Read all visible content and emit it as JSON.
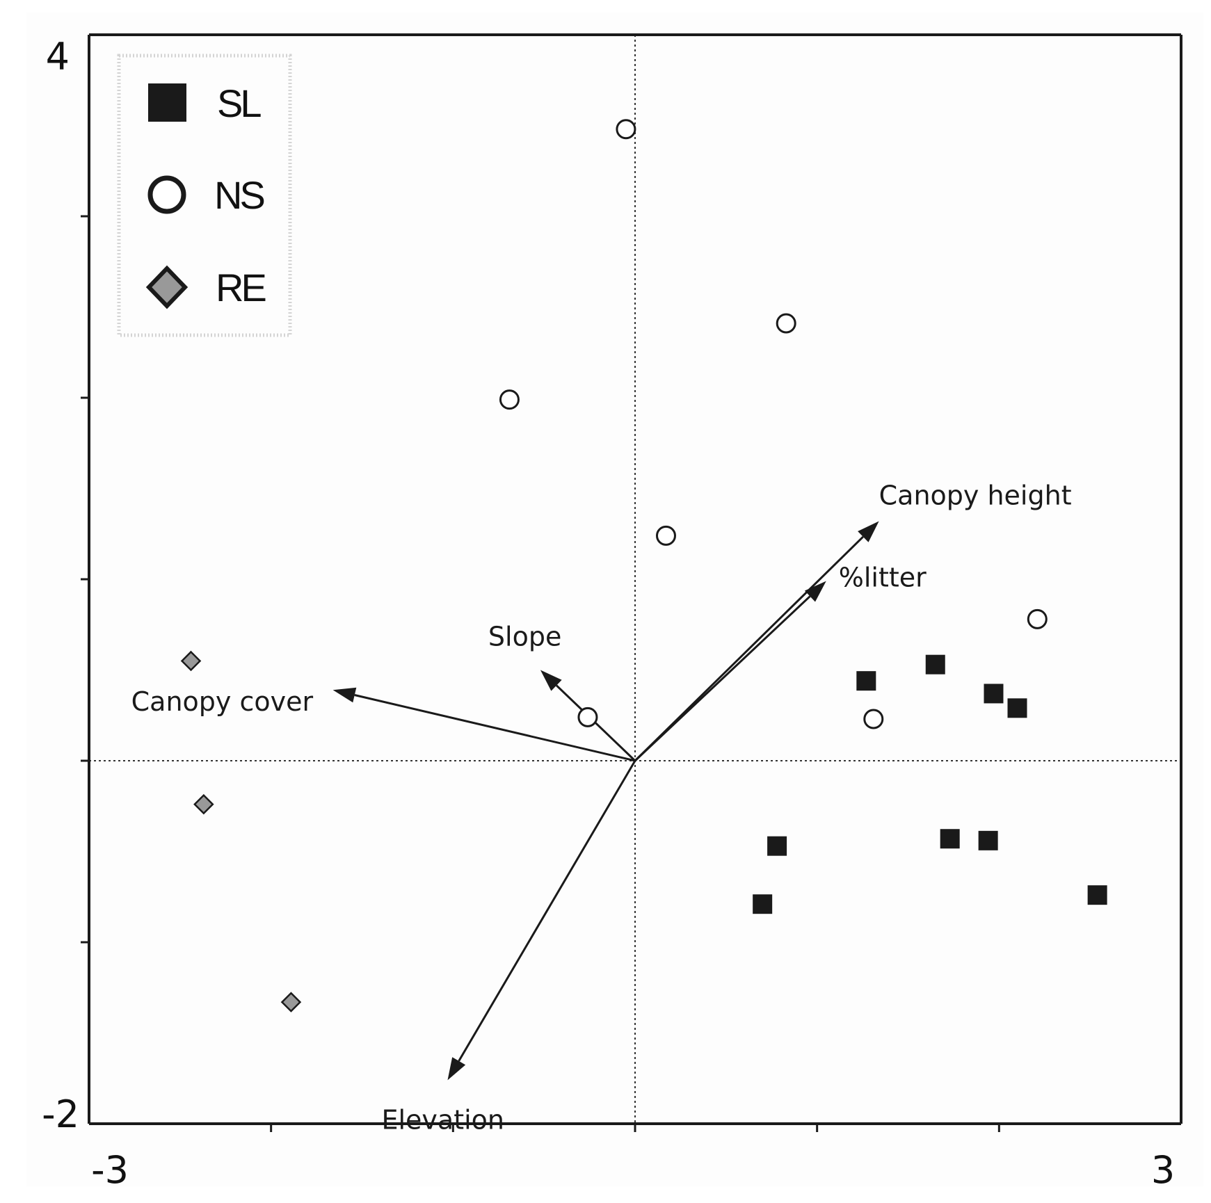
{
  "chart_data": {
    "type": "scatter",
    "title": "",
    "xlabel": "",
    "ylabel": "",
    "xlim": [
      -3,
      3
    ],
    "ylim": [
      -2,
      4
    ],
    "x_tick_labels": [
      "-3",
      "3"
    ],
    "y_tick_labels": [
      "4",
      "-2"
    ],
    "x_minor_ticks": [
      -2,
      -1,
      0,
      1,
      2
    ],
    "y_minor_ticks": [
      -1,
      0,
      1,
      2,
      3
    ],
    "reference_lines": {
      "x": 0,
      "y": 0,
      "style": "dotted"
    },
    "legend": {
      "placement": "top-left",
      "entries": [
        {
          "label": "SL",
          "marker": "square",
          "color": "#1a1a1a"
        },
        {
          "label": "NS",
          "marker": "circle-open",
          "color": "#1a1a1a"
        },
        {
          "label": "RE",
          "marker": "diamond",
          "color": "#999999"
        }
      ]
    },
    "series": [
      {
        "name": "SL",
        "marker": "square",
        "points": [
          [
            1.27,
            0.44
          ],
          [
            1.65,
            0.53
          ],
          [
            1.97,
            0.37
          ],
          [
            2.1,
            0.29
          ],
          [
            0.78,
            -0.47
          ],
          [
            1.73,
            -0.43
          ],
          [
            1.94,
            -0.44
          ],
          [
            0.7,
            -0.79
          ],
          [
            2.54,
            -0.74
          ]
        ]
      },
      {
        "name": "NS",
        "marker": "circle-open",
        "points": [
          [
            -0.05,
            3.48
          ],
          [
            0.83,
            2.41
          ],
          [
            -0.69,
            1.99
          ],
          [
            0.17,
            1.24
          ],
          [
            2.21,
            0.78
          ],
          [
            1.31,
            0.23
          ],
          [
            -0.26,
            0.24
          ]
        ]
      },
      {
        "name": "RE",
        "marker": "diamond",
        "points": [
          [
            -2.44,
            0.55
          ],
          [
            -2.37,
            -0.24
          ],
          [
            -1.89,
            -1.33
          ]
        ]
      }
    ],
    "vectors": [
      {
        "label": "Canopy height",
        "end": [
          1.34,
          1.32
        ],
        "label_anchor": "upper-right"
      },
      {
        "label": "%litter",
        "end": [
          1.05,
          0.99
        ],
        "label_anchor": "right"
      },
      {
        "label": "Slope",
        "end": [
          -0.52,
          0.5
        ],
        "label_anchor": "upper-left"
      },
      {
        "label": "Canopy cover",
        "end": [
          -1.66,
          0.39
        ],
        "label_anchor": "lower-left"
      },
      {
        "label": "Elevation",
        "end": [
          -1.03,
          -1.76
        ],
        "label_anchor": "below"
      }
    ]
  }
}
